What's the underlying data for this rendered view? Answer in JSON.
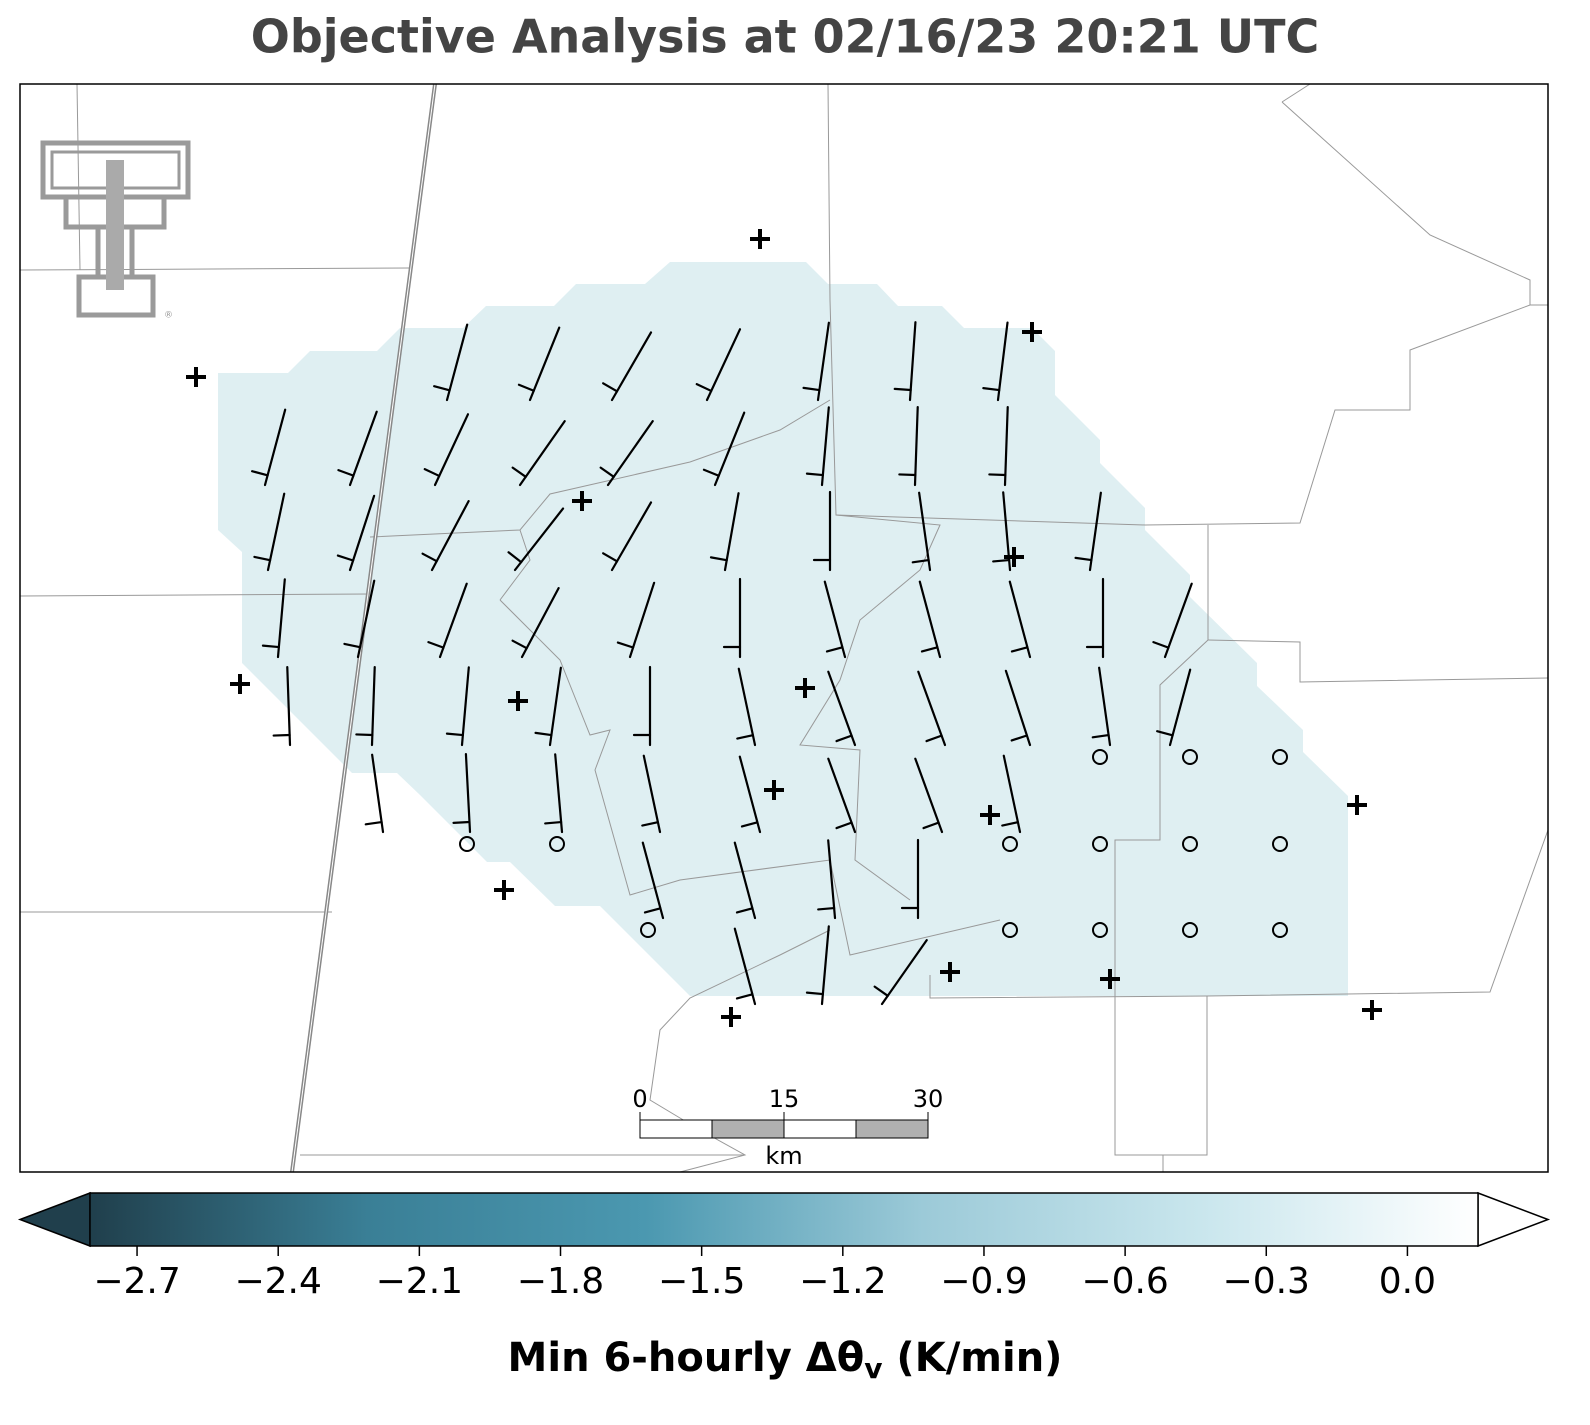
{
  "title": "Objective Analysis at 02/16/23 20:21 UTC",
  "logo": {
    "trademark": "®"
  },
  "scale_bar": {
    "ticks": [
      0,
      15,
      30
    ],
    "unit": "km"
  },
  "colorbar": {
    "label": {
      "text": "Min 6-hourly Δθ",
      "subscript": "v",
      "suffix": " (K/min)"
    },
    "lim": [
      -2.8,
      0.15
    ],
    "colormap": [
      "#203f4c",
      "#3a7f96",
      "#4b98b0",
      "#9ccad8",
      "#c9e6ed",
      "#ffffff"
    ],
    "extend": "both",
    "ticks": [
      {
        "value": -2.7,
        "label": "−2.7"
      },
      {
        "value": -2.4,
        "label": "−2.4"
      },
      {
        "value": -2.1,
        "label": "−2.1"
      },
      {
        "value": -1.8,
        "label": "−1.8"
      },
      {
        "value": -1.5,
        "label": "−1.5"
      },
      {
        "value": -1.2,
        "label": "−1.2"
      },
      {
        "value": -0.9,
        "label": "−0.9"
      },
      {
        "value": -0.6,
        "label": "−0.6"
      },
      {
        "value": -0.3,
        "label": "−0.3"
      },
      {
        "value": 0,
        "label": "0.0"
      }
    ]
  }
}
